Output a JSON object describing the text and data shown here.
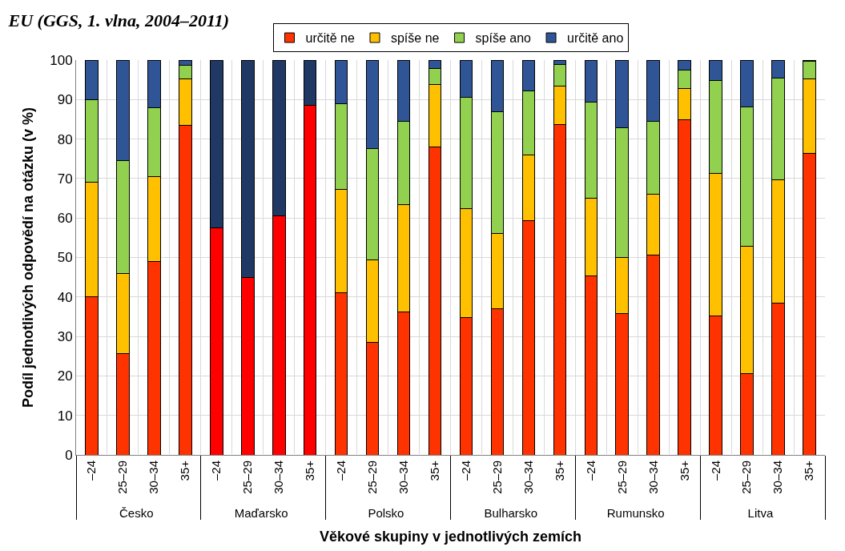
{
  "chart_data": {
    "type": "bar",
    "stacked": true,
    "title": "EU (GGS, 1. vlna, 2004–2011)",
    "xlabel": "Věkové skupiny v jednotlivých zemích",
    "ylabel": "Podíl jednotlivých odpovědí na otázku (v %)",
    "categories": [
      "–24",
      "25–29",
      "30–34",
      "35+",
      "–24",
      "25–29",
      "30–34",
      "35+",
      "–24",
      "25–29",
      "30–34",
      "35+",
      "–24",
      "25–29",
      "30–34",
      "35+",
      "–24",
      "25–29",
      "30–34",
      "35+",
      "–24",
      "25–29",
      "30–34",
      "35+"
    ],
    "annotations": [
      "Česko",
      "Maďarsko",
      "Polsko",
      "Bulharsko",
      "Rumunsko",
      "Litva"
    ],
    "series": [
      {
        "name": "určitě ne",
        "color": "#ff3300",
        "colors": [
          "#ff3300",
          "#ff3300",
          "#ff3300",
          "#ff3300",
          "#ff0000",
          "#ff0000",
          "#ff0000",
          "#ff0000",
          "#ff3300",
          "#ff3300",
          "#ff3300",
          "#ff3300",
          "#ff3300",
          "#ff3300",
          "#ff3300",
          "#ff3300",
          "#ff3300",
          "#ff3300",
          "#ff3300",
          "#ff3300",
          "#ff3300",
          "#ff3300",
          "#ff3300",
          "#ff3300"
        ],
        "values": [
          40,
          25.7,
          49,
          83.5,
          57.5,
          45,
          60.5,
          88.5,
          41,
          28.6,
          36.2,
          78,
          34.7,
          37,
          59.3,
          83.6,
          45.4,
          35.9,
          50.7,
          84.8,
          35.2,
          20.6,
          38.4,
          76.4
        ]
      },
      {
        "name": "spíše ne",
        "color": "#ffc000",
        "values": [
          29,
          20.3,
          21.5,
          11.8,
          null,
          null,
          null,
          null,
          26.3,
          20.8,
          27.1,
          15.8,
          27.7,
          19,
          16.7,
          9.9,
          19.7,
          14.1,
          15.3,
          8.1,
          36,
          32.3,
          31.2,
          18.9
        ]
      },
      {
        "name": "spíše ano",
        "color": "#92d050",
        "values": [
          21,
          28.5,
          17.5,
          3.3,
          null,
          null,
          null,
          null,
          21.7,
          28.2,
          21.2,
          4,
          28.1,
          31,
          16.2,
          5.4,
          24.2,
          32.9,
          18.5,
          4.5,
          23.7,
          35.2,
          25.9,
          4.3
        ]
      },
      {
        "name": "určitě ano",
        "color": "#2f5597",
        "colors": [
          "#2f5597",
          "#2f5597",
          "#2f5597",
          "#2f5597",
          "#1f3864",
          "#1f3864",
          "#1f3864",
          "#1f3864",
          "#2f5597",
          "#2f5597",
          "#2f5597",
          "#2f5597",
          "#2f5597",
          "#2f5597",
          "#2f5597",
          "#2f5597",
          "#2f5597",
          "#2f5597",
          "#2f5597",
          "#2f5597",
          "#2f5597",
          "#2f5597",
          "#2f5597",
          "#2f5597"
        ],
        "values": [
          10,
          25.5,
          12,
          1.4,
          42.5,
          55,
          39.5,
          11.5,
          11,
          22.4,
          15.5,
          2.2,
          9.5,
          13,
          7.8,
          1.1,
          10.7,
          17.1,
          15.5,
          2.6,
          5.1,
          11.9,
          4.5,
          0.4
        ]
      }
    ],
    "ylim": [
      0,
      100
    ],
    "yticks": [
      0,
      10,
      20,
      30,
      40,
      50,
      60,
      70,
      80,
      90,
      100
    ],
    "grid": true,
    "legend": "top"
  }
}
